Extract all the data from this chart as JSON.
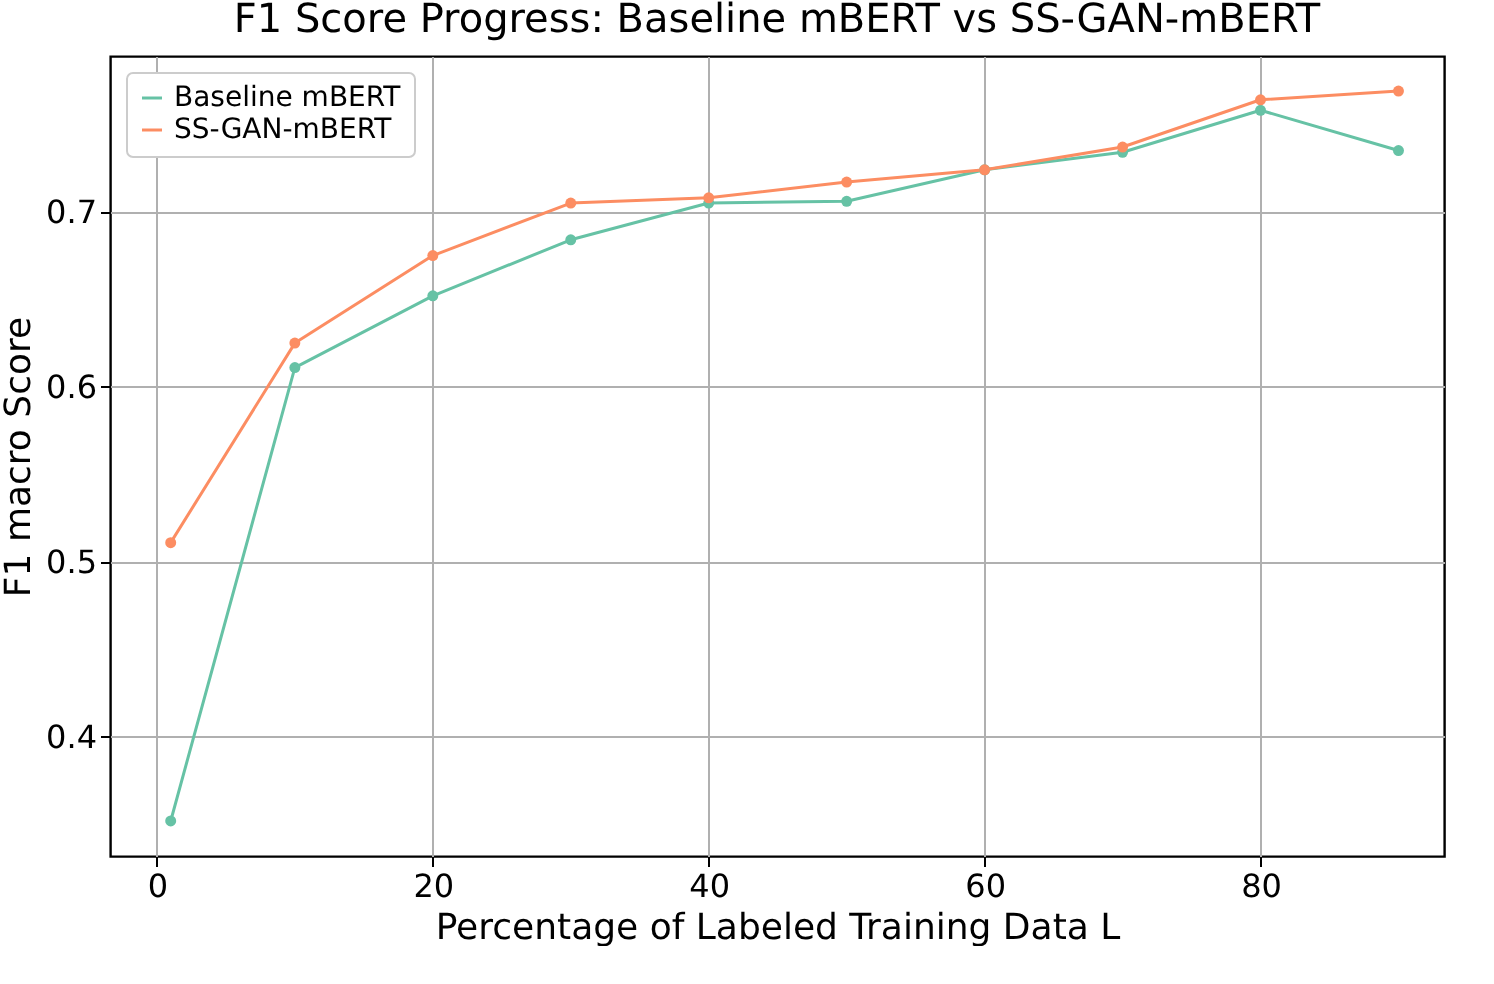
{
  "chart_data": {
    "type": "line",
    "title": "F1 Score Progress: Baseline mBERT vs SS-GAN-mBERT",
    "xlabel": "Percentage of Labeled Training Data L",
    "ylabel": "F1 macro Score",
    "x": [
      1,
      10,
      20,
      30,
      40,
      50,
      60,
      70,
      80,
      90
    ],
    "series": [
      {
        "name": "Baseline mBERT",
        "color": "#66c2a5",
        "values": [
          0.352,
          0.611,
          0.652,
          0.684,
          0.705,
          0.706,
          0.724,
          0.734,
          0.758,
          0.735
        ]
      },
      {
        "name": "SS-GAN-mBERT",
        "color": "#fc8d62",
        "values": [
          0.511,
          0.625,
          0.675,
          0.705,
          0.708,
          0.717,
          0.724,
          0.737,
          0.764,
          0.769
        ]
      }
    ],
    "xlim": [
      -3.4,
      93.3
    ],
    "xticks": [
      0,
      20,
      40,
      60,
      80
    ],
    "ylim": [
      0.332,
      0.789
    ],
    "yticks": [
      0.4,
      0.5,
      0.6,
      0.7
    ],
    "grid": true,
    "legend": "top left",
    "marker": "circle",
    "line_style": "solid"
  }
}
